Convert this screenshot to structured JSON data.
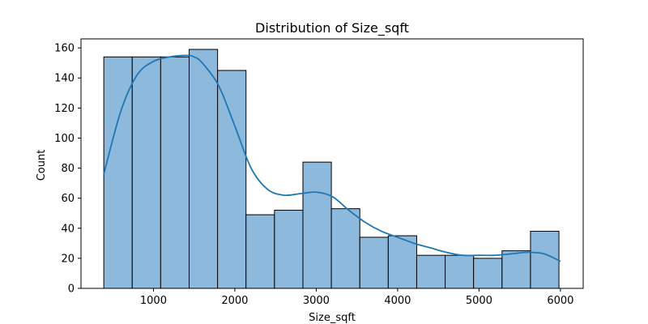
{
  "chart_data": {
    "type": "bar",
    "title": "Distribution of Size_sqft",
    "xlabel": "Size_sqft",
    "ylabel": "Count",
    "xlim": [
      110,
      6280
    ],
    "ylim": [
      0,
      166
    ],
    "xticks": [
      1000,
      2000,
      3000,
      4000,
      5000,
      6000
    ],
    "yticks": [
      0,
      20,
      40,
      60,
      80,
      100,
      120,
      140,
      160
    ],
    "bin_start": 390,
    "bin_width": 349.5,
    "counts": [
      154,
      154,
      154,
      159,
      145,
      49,
      52,
      84,
      53,
      34,
      35,
      22,
      22,
      20,
      25,
      38
    ],
    "bar_color": "#8db9dc",
    "bar_edge": "#000000",
    "kde": {
      "x": [
        390,
        600,
        800,
        1000,
        1200,
        1400,
        1500,
        1600,
        1800,
        2000,
        2200,
        2400,
        2600,
        2800,
        3000,
        3200,
        3400,
        3600,
        3800,
        4000,
        4200,
        4400,
        4600,
        4800,
        5000,
        5200,
        5400,
        5600,
        5800,
        6000
      ],
      "y": [
        76,
        118,
        142,
        151,
        154,
        155,
        154,
        150,
        135,
        108,
        80,
        66,
        62,
        63,
        64,
        61,
        52,
        44,
        38,
        34,
        30,
        27,
        24,
        22,
        22,
        22,
        23,
        24,
        23,
        18
      ],
      "color": "#1f77b4"
    }
  }
}
